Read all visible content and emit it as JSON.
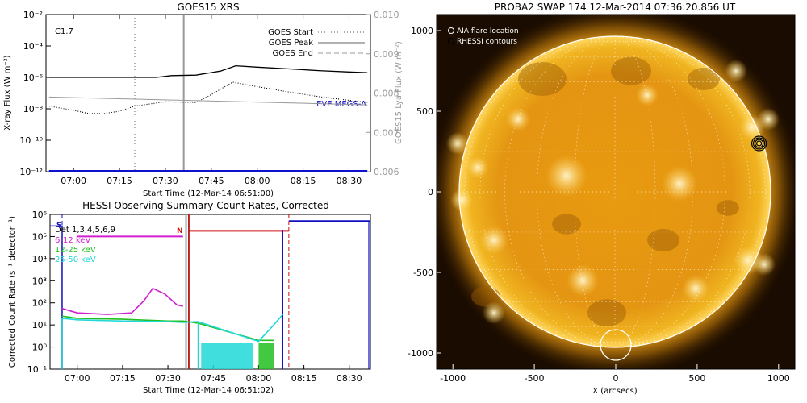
{
  "xrs": {
    "title": "GOES15 XRS",
    "xlabel": "Start Time (12-Mar-14 06:51:00)",
    "ylabel_left": "X-ray Flux (W m⁻²)",
    "ylabel_right": "GOES15 Lya Flux (W m⁻²)",
    "class_label": "C1.7",
    "legend": [
      "GOES Start",
      "GOES Peak",
      "GOES End"
    ],
    "eve_label": "EVE MEGS-A",
    "x_ticks": [
      "07:00",
      "07:15",
      "07:30",
      "07:45",
      "08:00",
      "08:15",
      "08:30"
    ],
    "y_ticks_left": [
      "10⁻²",
      "10⁻⁴",
      "10⁻⁶",
      "10⁻⁸",
      "10⁻¹⁰",
      "10⁻¹²"
    ],
    "y_ticks_right": [
      "0.010",
      "0.009",
      "0.008",
      "0.007",
      "0.006"
    ]
  },
  "hessi": {
    "title": "HESSI Observing Summary Count Rates, Corrected",
    "xlabel": "Start Time (12-Mar-14 06:51:02)",
    "ylabel": "Corrected Count Rate (s⁻¹ detector⁻¹)",
    "det_label": "Det 1,3,4,5,6,9",
    "s_label": "S",
    "n_label": "N",
    "x_ticks": [
      "07:00",
      "07:15",
      "07:30",
      "07:45",
      "08:00",
      "08:15",
      "08:30"
    ],
    "y_ticks": [
      "10⁶",
      "10⁵",
      "10⁴",
      "10³",
      "10²",
      "10¹",
      "10⁰",
      "10⁻¹"
    ]
  },
  "swap": {
    "title": "PROBA2 SWAP 174 12-Mar-2014 07:36:20.856 UT",
    "legend": [
      "AIA flare location",
      "RHESSI contours"
    ],
    "xlabel": "X (arcsecs)",
    "x_ticks": [
      "-1000",
      "-500",
      "0",
      "500",
      "1000"
    ],
    "y_ticks": [
      "1000",
      "500",
      "0",
      "-500",
      "-1000"
    ]
  },
  "chart_data": [
    {
      "type": "line",
      "title": "GOES15 XRS",
      "xlabel": "Start Time (12-Mar-14 06:51:00)",
      "ylabel": "X-ray Flux (W m^-2)",
      "ylabel_right": "GOES15 Lya Flux (W m^-2)",
      "y_scale": "log",
      "ylim": [
        1e-12,
        0.01
      ],
      "ylim_right": [
        0.006,
        0.01
      ],
      "x_range": [
        "06:51",
        "08:37"
      ],
      "series": [
        {
          "name": "",
          "x": [
            "06:52",
            "07:00",
            "07:10",
            "07:20",
            "07:27",
            "07:32",
            "07:40",
            "07:48",
            "07:53",
            "08:00",
            "08:10",
            "08:20",
            "08:30",
            "08:36"
          ],
          "values": [
            1e-06,
            1e-06,
            1e-06,
            1e-06,
            1e-06,
            1.3e-06,
            1.4e-06,
            2.5e-06,
            5.5e-06,
            4.5e-06,
            3.5e-06,
            2.7e-06,
            2.2e-06,
            2e-06
          ]
        },
        {
          "name": "",
          "x": [
            "06:52",
            "07:00",
            "07:05",
            "07:10",
            "07:15",
            "07:20",
            "07:30",
            "07:40",
            "07:45",
            "07:52",
            "07:58",
            "08:10",
            "08:20",
            "08:36"
          ],
          "values": [
            1.5e-08,
            8e-09,
            5e-09,
            5e-09,
            7e-09,
            1.5e-08,
            2.8e-08,
            2.5e-08,
            8e-08,
            5e-07,
            3e-07,
            1.2e-07,
            6e-08,
            2.5e-08
          ]
        },
        {
          "name": "",
          "x": [
            "06:52",
            "08:36"
          ],
          "values": [
            0.0079,
            0.0077
          ]
        },
        {
          "name": "EVE MEGS-A",
          "x": [
            "06:52",
            "08:36"
          ],
          "values": [
            1e-12,
            1e-12
          ]
        }
      ],
      "vlines": [
        {
          "name": "GOES Start",
          "x": "07:20"
        },
        {
          "name": "GOES Peak",
          "x": "07:36"
        }
      ]
    },
    {
      "type": "line",
      "title": "HESSI Observing Summary Count Rates, Corrected",
      "xlabel": "Start Time (12-Mar-14 06:51:02)",
      "ylabel": "Corrected Count Rate (s^-1 detector^-1)",
      "y_scale": "log",
      "ylim": [
        0.1,
        1000000.0
      ],
      "x_range": [
        "06:51",
        "08:37"
      ],
      "series": [
        {
          "name": "6-12 keV",
          "x": [
            "06:55",
            "07:00",
            "07:10",
            "07:18",
            "07:22",
            "07:25",
            "07:29",
            "07:33",
            "07:35"
          ],
          "values": [
            55,
            35,
            30,
            35,
            120,
            450,
            250,
            80,
            70
          ]
        },
        {
          "name": "12-25 keV",
          "x": [
            "06:55",
            "07:00",
            "07:15",
            "07:30",
            "07:35",
            "07:40",
            "08:00",
            "08:03",
            "08:05"
          ],
          "values": [
            25,
            20,
            18,
            15,
            15,
            12,
            2,
            2,
            2
          ]
        },
        {
          "name": "25-50 keV",
          "x": [
            "06:55",
            "07:00",
            "07:15",
            "07:30",
            "07:35",
            "07:40",
            "08:00",
            "08:05",
            "08:08"
          ],
          "values": [
            20,
            17,
            15,
            14,
            13,
            14,
            1.8,
            10,
            30
          ]
        }
      ],
      "vlines": [
        {
          "name": "",
          "x": "06:55"
        },
        {
          "name": "",
          "x": "07:36"
        },
        {
          "name": "",
          "x": "08:10"
        }
      ]
    },
    {
      "type": "heatmap",
      "title": "PROBA2 SWAP 174 12-Mar-2014 07:36:20.856 UT",
      "xlabel": "X (arcsecs)",
      "xlim": [
        -1100,
        1100
      ],
      "ylim": [
        -1100,
        1100
      ],
      "markers": [
        {
          "name": "AIA flare location",
          "x": 0,
          "y": -950
        },
        {
          "name": "RHESSI contours",
          "x": 880,
          "y": 300
        }
      ]
    }
  ]
}
